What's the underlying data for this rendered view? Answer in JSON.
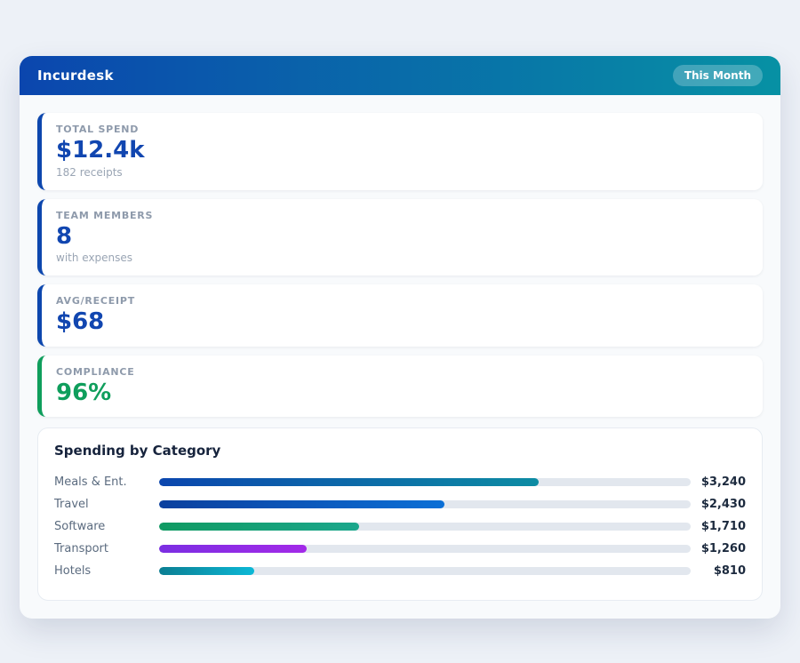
{
  "page": {
    "background": "#edf1f7"
  },
  "header": {
    "title": "Incurdesk",
    "badge": "This Month",
    "gradient_from": "#0b46ae",
    "gradient_to": "#0791a4"
  },
  "stats": [
    {
      "label": "TOTAL SPEND",
      "value": "$12.4k",
      "sub": "182 receipts",
      "accent": "#0d47ae",
      "value_color": "#1146b0"
    },
    {
      "label": "TEAM MEMBERS",
      "value": "8",
      "sub": "with expenses",
      "accent": "#0d47ae",
      "value_color": "#1146b0"
    },
    {
      "label": "AVG/RECEIPT",
      "value": "$68",
      "sub": "",
      "accent": "#0d47ae",
      "value_color": "#1146b0"
    },
    {
      "label": "COMPLIANCE",
      "value": "96%",
      "sub": "",
      "accent": "#0f9e5c",
      "value_color": "#0f9e5c"
    }
  ],
  "chart_data": {
    "type": "bar",
    "orientation": "horizontal",
    "title": "Spending by Category",
    "categories": [
      "Meals & Ent.",
      "Travel",
      "Software",
      "Transport",
      "Hotels"
    ],
    "values": [
      3240,
      2430,
      1710,
      1260,
      810
    ],
    "value_labels": [
      "$3,240",
      "$2,430",
      "$1,710",
      "$1,260",
      "$810"
    ],
    "axis_max": 4536,
    "track_color": "#e2e7ee",
    "bar_gradients": [
      [
        "#0b46ae",
        "#0d8ca3"
      ],
      [
        "#0a3f9e",
        "#0a6fd6"
      ],
      [
        "#109a62",
        "#1ba78c"
      ],
      [
        "#7b2ee2",
        "#a32ae8"
      ],
      [
        "#0b7e92",
        "#0cb8d6"
      ]
    ],
    "grid": false,
    "legend": false
  }
}
